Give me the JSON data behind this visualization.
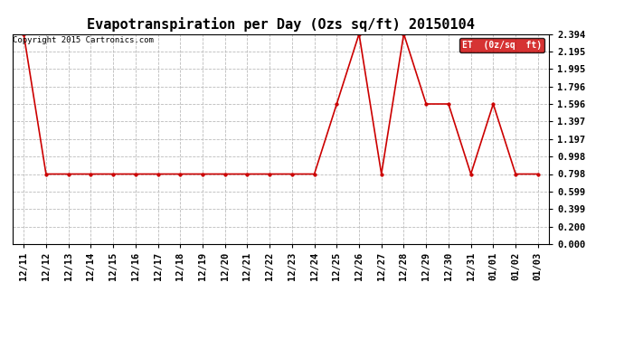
{
  "title": "Evapotranspiration per Day (Ozs sq/ft) 20150104",
  "copyright": "Copyright 2015 Cartronics.com",
  "legend_label": "ET  (0z/sq  ft)",
  "x_labels": [
    "12/11",
    "12/12",
    "12/13",
    "12/14",
    "12/15",
    "12/16",
    "12/17",
    "12/18",
    "12/19",
    "12/20",
    "12/21",
    "12/22",
    "12/23",
    "12/24",
    "12/25",
    "12/26",
    "12/27",
    "12/28",
    "12/29",
    "12/30",
    "12/31",
    "01/01",
    "01/02",
    "01/03"
  ],
  "y_values": [
    2.394,
    0.798,
    0.798,
    0.798,
    0.798,
    0.798,
    0.798,
    0.798,
    0.798,
    0.798,
    0.798,
    0.798,
    0.798,
    0.798,
    1.596,
    2.394,
    0.798,
    2.394,
    1.596,
    1.596,
    0.798,
    1.596,
    0.798,
    0.798
  ],
  "y_ticks": [
    0.0,
    0.2,
    0.399,
    0.599,
    0.798,
    0.998,
    1.197,
    1.397,
    1.596,
    1.796,
    1.995,
    2.195,
    2.394
  ],
  "y_min": 0.0,
  "y_max": 2.394,
  "line_color": "#cc0000",
  "marker": "o",
  "marker_size": 2.5,
  "line_width": 1.2,
  "bg_color": "#ffffff",
  "plot_bg_color": "#ffffff",
  "grid_color": "#bbbbbb",
  "legend_bg": "#cc0000",
  "legend_text_color": "#ffffff",
  "title_fontsize": 11,
  "tick_fontsize": 7.5,
  "copyright_fontsize": 6.5
}
